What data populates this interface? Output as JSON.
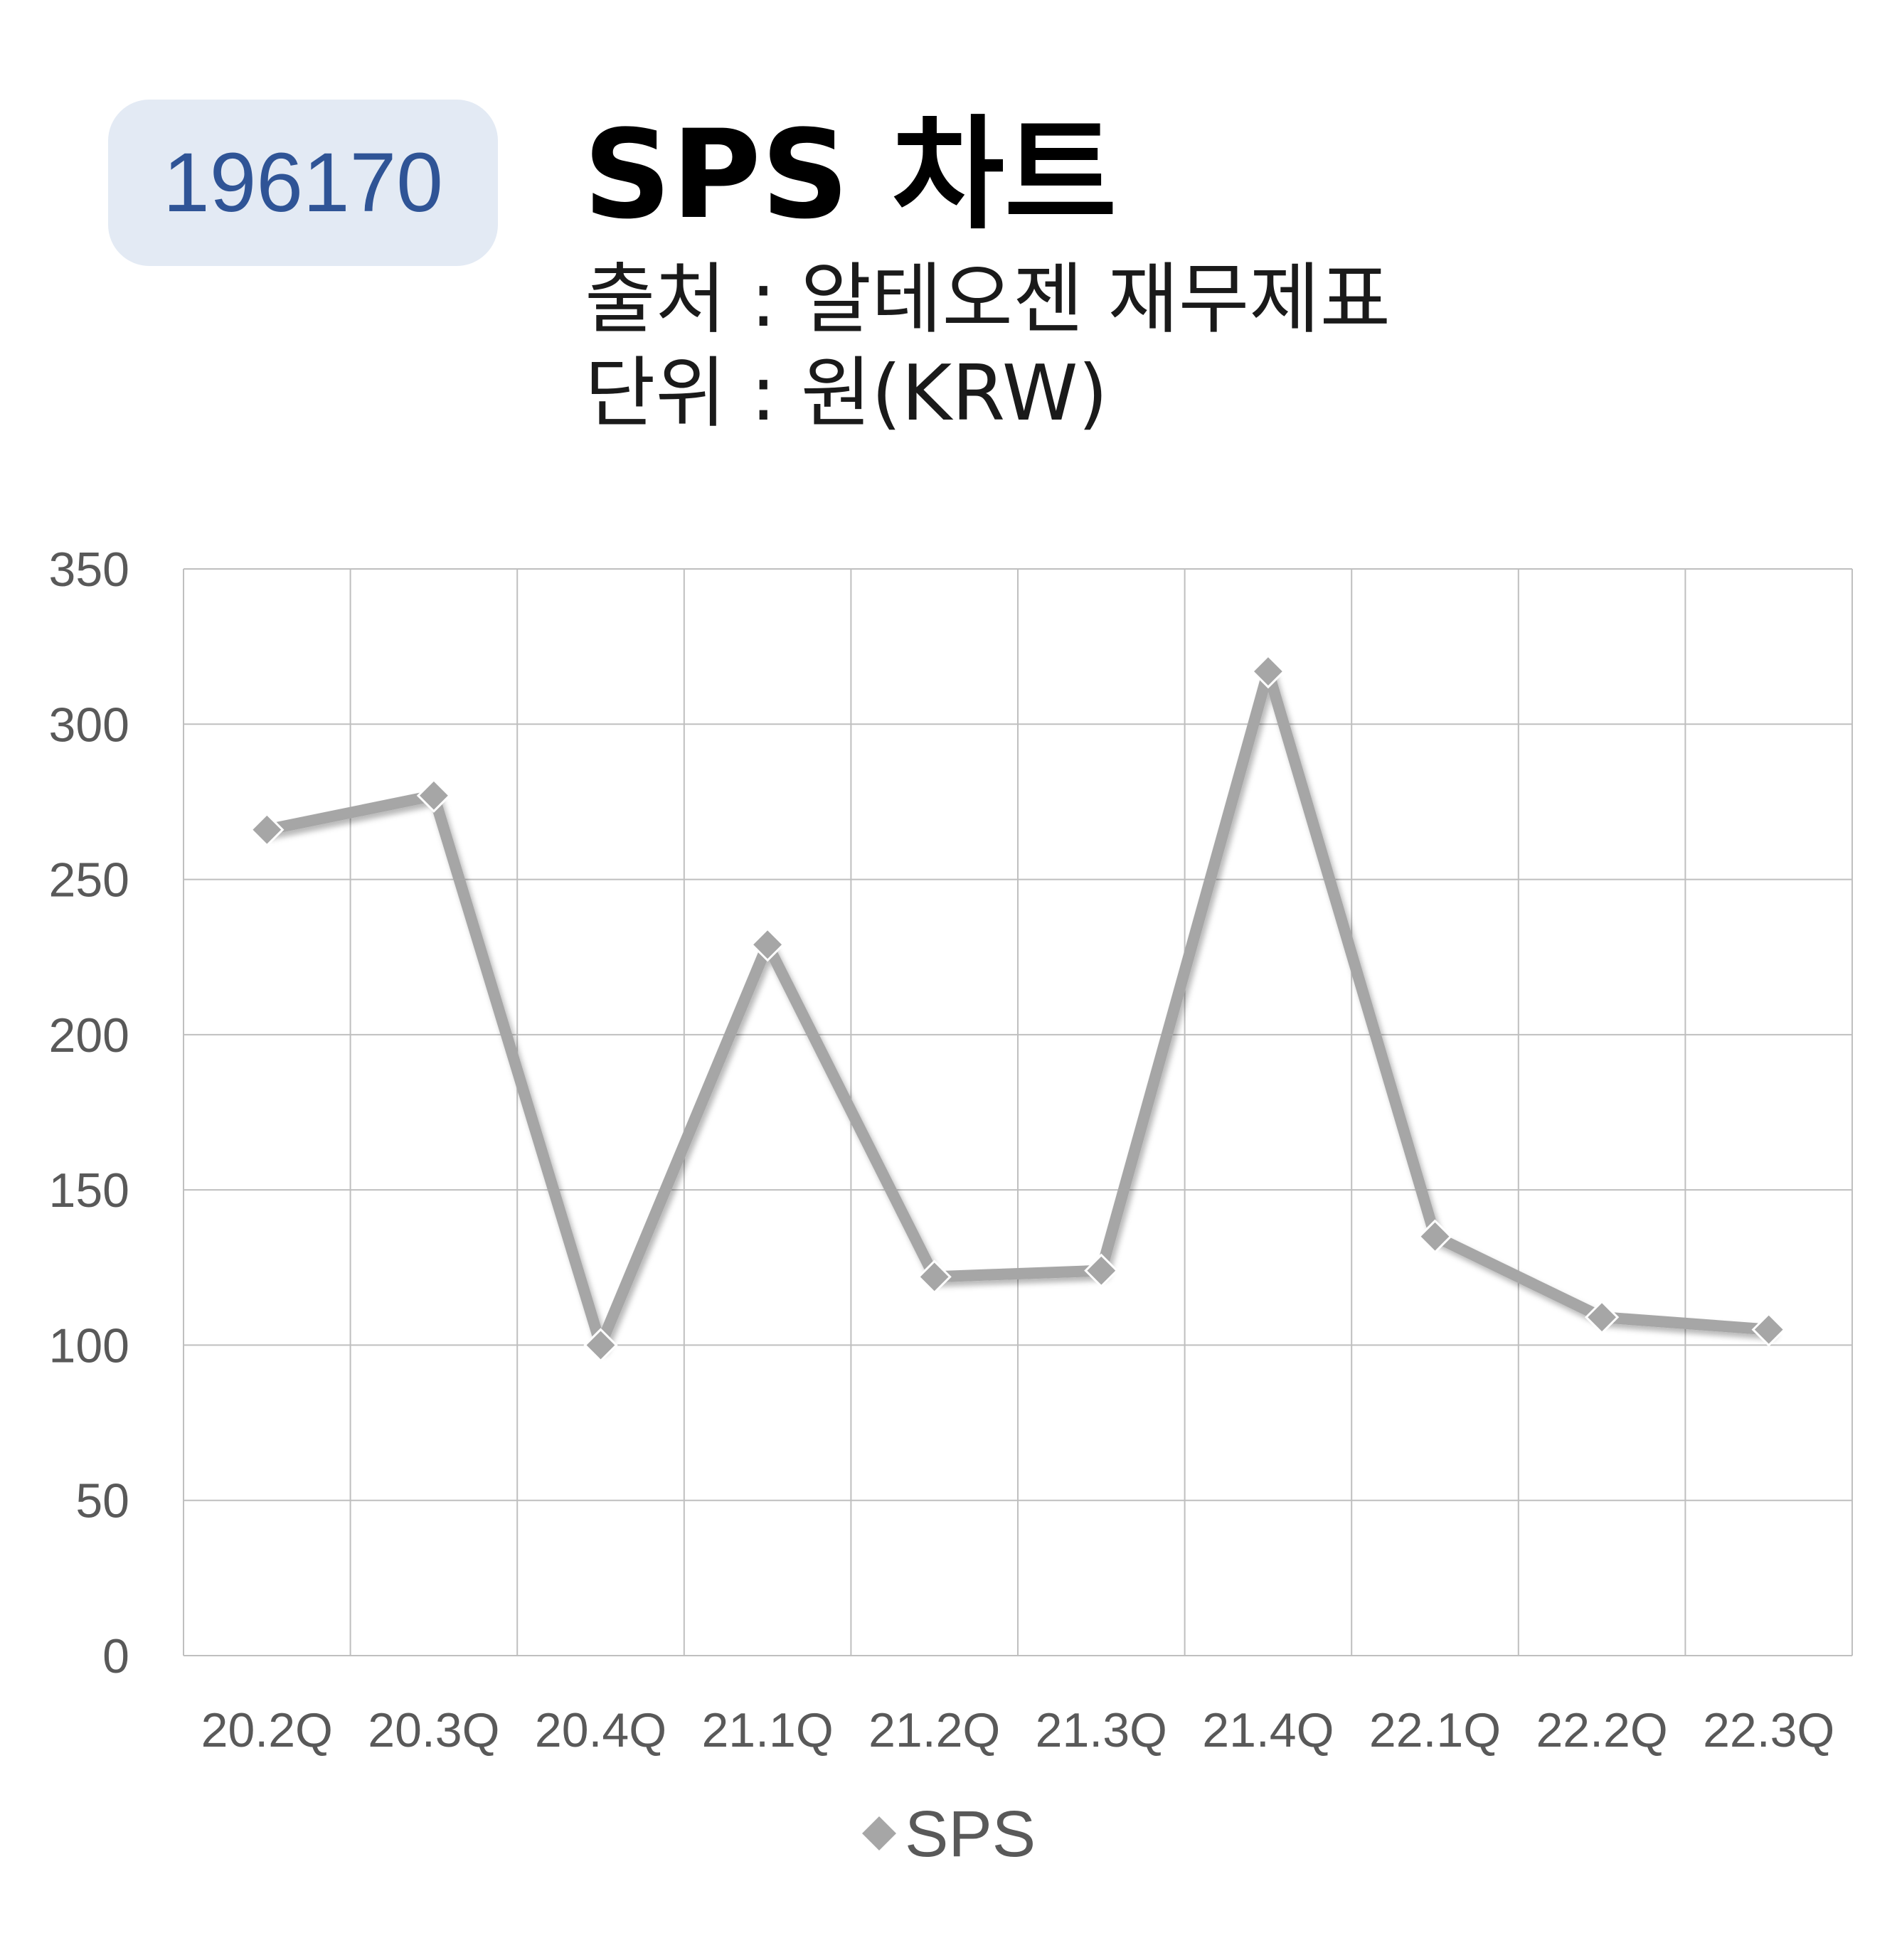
{
  "header": {
    "code": "196170",
    "title": "SPS 차트",
    "source": "출처 : 알테오젠 재무제표",
    "unit": "단위 : 원(KRW)"
  },
  "colors": {
    "badge_bg": "#e3eaf4",
    "badge_text": "#2f5496",
    "series": "#a6a6a6",
    "grid": "#bfbfbf",
    "tick_text": "#595959"
  },
  "chart_data": {
    "type": "line",
    "title": "SPS 차트",
    "xlabel": "",
    "ylabel": "",
    "categories": [
      "20.2Q",
      "20.3Q",
      "20.4Q",
      "21.1Q",
      "21.2Q",
      "21.3Q",
      "21.4Q",
      "22.1Q",
      "22.2Q",
      "22.3Q"
    ],
    "series": [
      {
        "name": "SPS",
        "marker": "diamond",
        "values": [
          266,
          277,
          100,
          229,
          122,
          124,
          317,
          135,
          109,
          105
        ]
      }
    ],
    "ylim": [
      0,
      350
    ],
    "yticks": [
      0,
      50,
      100,
      150,
      200,
      250,
      300,
      350
    ],
    "grid": true,
    "legend": "bottom"
  }
}
